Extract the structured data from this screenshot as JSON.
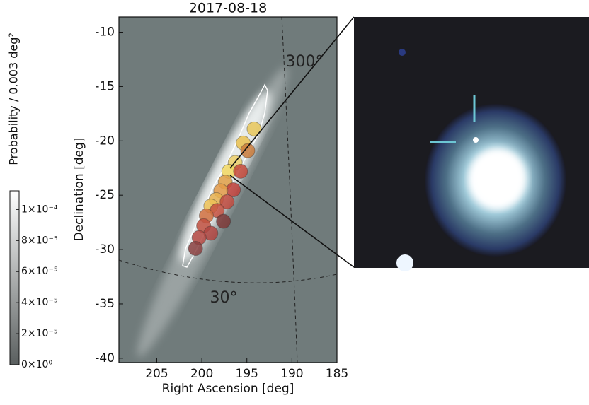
{
  "chart_data": {
    "type": "scatter",
    "title": "2017-08-18",
    "x_label": "Right Ascension [deg]",
    "y_label": "Declination [deg]",
    "x": [
      194.2,
      195.4,
      194.9,
      196.3,
      197.0,
      195.7,
      197.4,
      196.5,
      197.9,
      198.4,
      197.2,
      199.0,
      198.3,
      199.5,
      197.6,
      199.8,
      199.0,
      200.3,
      200.7
    ],
    "values": [
      -18.9,
      -20.2,
      -20.9,
      -22.0,
      -22.8,
      -22.8,
      -23.8,
      -24.5,
      -24.6,
      -25.4,
      -25.6,
      -26.0,
      -26.4,
      -26.9,
      -27.4,
      -27.8,
      -28.5,
      -28.9,
      -29.9
    ],
    "colors": [
      "#e8c75a",
      "#e9c150",
      "#c97a3a",
      "#edd06a",
      "#f2d861",
      "#c4483a",
      "#e0a048",
      "#c0403a",
      "#e39a48",
      "#e7b250",
      "#c04a3e",
      "#ecc156",
      "#c4503f",
      "#d07040",
      "#7e3a38",
      "#c05040",
      "#b04440",
      "#b44842",
      "#8a4040"
    ],
    "xlim": [
      209.2,
      185
    ],
    "xticks": [
      205,
      200,
      195,
      190,
      185
    ],
    "ylim": [
      -40.4,
      -8.6
    ],
    "yticks": [
      -10,
      -15,
      -20,
      -25,
      -30,
      -35,
      -40
    ],
    "annotations": [
      "300°",
      "30°"
    ],
    "colorbar": {
      "label": "Probability / 0.003 deg²",
      "lim": [
        0,
        0.000112
      ],
      "ticks": [
        {
          "value": 0,
          "label": "0×10⁰"
        },
        {
          "value": 2e-05,
          "label": "2×10⁻⁵"
        },
        {
          "value": 4e-05,
          "label": "4×10⁻⁵"
        },
        {
          "value": 6e-05,
          "label": "6×10⁻⁵"
        },
        {
          "value": 8e-05,
          "label": "8×10⁻⁵"
        },
        {
          "value": 0.0001,
          "label": "1×10⁻⁴"
        }
      ]
    }
  }
}
